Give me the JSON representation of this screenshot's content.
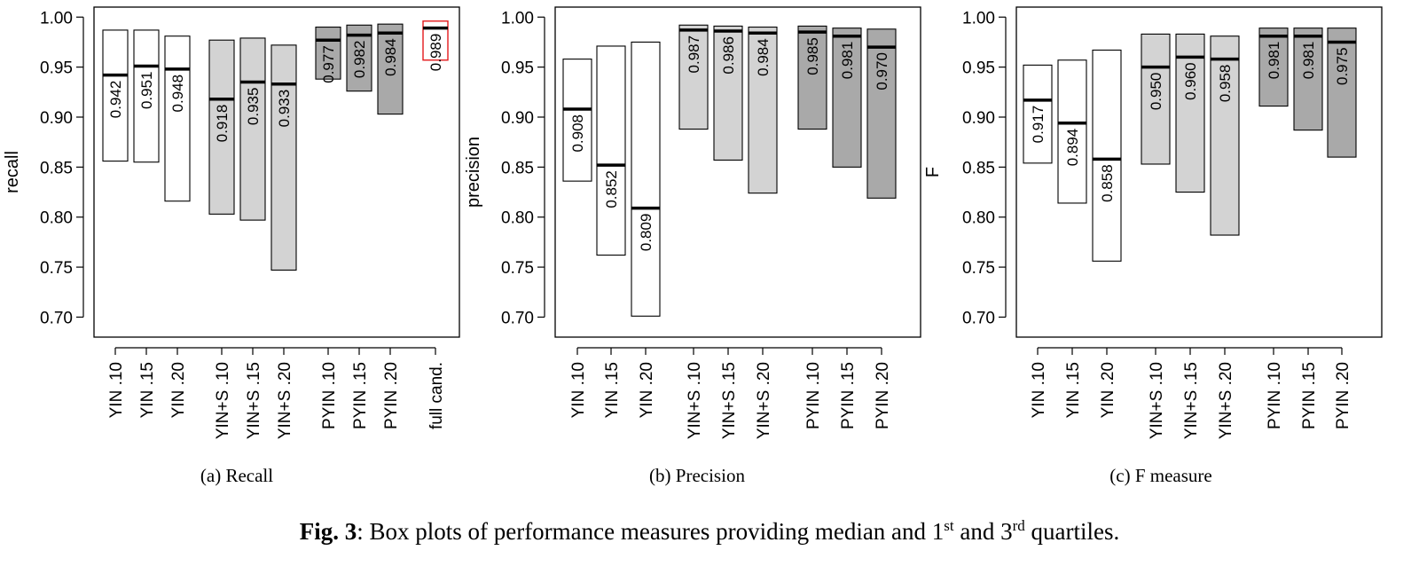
{
  "chart_data": [
    {
      "type": "box",
      "ylabel": "recall",
      "ylim": [
        0.68,
        1.01
      ],
      "yticks": [
        "0.70",
        "0.75",
        "0.80",
        "0.85",
        "0.90",
        "0.95",
        "1.00"
      ],
      "caption": "(a) Recall",
      "categories": [
        "YIN .10",
        "YIN .15",
        "YIN .20",
        "YIN+S .10",
        "YIN+S .15",
        "YIN+S .20",
        "PYIN .10",
        "PYIN .15",
        "PYIN .20",
        "full cand."
      ],
      "median_labels": [
        "0.942",
        "0.951",
        "0.948",
        "0.918",
        "0.935",
        "0.933",
        "0.977",
        "0.982",
        "0.984",
        "0.989"
      ],
      "q1": [
        0.856,
        0.855,
        0.816,
        0.803,
        0.797,
        0.747,
        0.938,
        0.926,
        0.903,
        0.957
      ],
      "median": [
        0.942,
        0.951,
        0.948,
        0.918,
        0.935,
        0.933,
        0.977,
        0.982,
        0.984,
        0.989
      ],
      "q3": [
        0.987,
        0.987,
        0.981,
        0.977,
        0.979,
        0.972,
        0.99,
        0.992,
        0.993,
        0.996
      ],
      "fill_groups": [
        "none",
        "none",
        "none",
        "light",
        "light",
        "light",
        "dark",
        "dark",
        "dark",
        "highlight"
      ]
    },
    {
      "type": "box",
      "ylabel": "precision",
      "ylim": [
        0.68,
        1.01
      ],
      "yticks": [
        "0.70",
        "0.75",
        "0.80",
        "0.85",
        "0.90",
        "0.95",
        "1.00"
      ],
      "caption": "(b) Precision",
      "categories": [
        "YIN .10",
        "YIN .15",
        "YIN .20",
        "YIN+S .10",
        "YIN+S .15",
        "YIN+S .20",
        "PYIN .10",
        "PYIN .15",
        "PYIN .20"
      ],
      "median_labels": [
        "0.908",
        "0.852",
        "0.809",
        "0.987",
        "0.986",
        "0.984",
        "0.985",
        "0.981",
        "0.970"
      ],
      "q1": [
        0.836,
        0.762,
        0.701,
        0.888,
        0.857,
        0.824,
        0.888,
        0.85,
        0.819
      ],
      "median": [
        0.908,
        0.852,
        0.809,
        0.987,
        0.986,
        0.984,
        0.985,
        0.981,
        0.97
      ],
      "q3": [
        0.958,
        0.971,
        0.975,
        0.992,
        0.991,
        0.99,
        0.991,
        0.989,
        0.988
      ],
      "fill_groups": [
        "none",
        "none",
        "none",
        "light",
        "light",
        "light",
        "dark",
        "dark",
        "dark"
      ]
    },
    {
      "type": "box",
      "ylabel": "F",
      "ylim": [
        0.68,
        1.01
      ],
      "yticks": [
        "0.70",
        "0.75",
        "0.80",
        "0.85",
        "0.90",
        "0.95",
        "1.00"
      ],
      "caption": "(c) F measure",
      "categories": [
        "YIN .10",
        "YIN .15",
        "YIN .20",
        "YIN+S .10",
        "YIN+S .15",
        "YIN+S .20",
        "PYIN .10",
        "PYIN .15",
        "PYIN .20"
      ],
      "median_labels": [
        "0.917",
        "0.894",
        "0.858",
        "0.950",
        "0.960",
        "0.958",
        "0.981",
        "0.981",
        "0.975"
      ],
      "q1": [
        0.854,
        0.814,
        0.756,
        0.853,
        0.825,
        0.782,
        0.911,
        0.887,
        0.86
      ],
      "median": [
        0.917,
        0.894,
        0.858,
        0.95,
        0.96,
        0.958,
        0.981,
        0.981,
        0.975
      ],
      "q3": [
        0.952,
        0.957,
        0.967,
        0.983,
        0.983,
        0.981,
        0.989,
        0.989,
        0.989
      ],
      "fill_groups": [
        "none",
        "none",
        "none",
        "light",
        "light",
        "light",
        "dark",
        "dark",
        "dark"
      ]
    }
  ],
  "colors": {
    "none": "#ffffff",
    "light": "#d3d3d3",
    "dark": "#a9a9a9",
    "highlight": "#ffffff",
    "highlight_border": "#e41a1c"
  },
  "figure_caption": {
    "label": "Fig. 3",
    "text_1": ": Box plots of performance measures providing median and 1",
    "sup_1": "st",
    "text_2": " and 3",
    "sup_2": "rd",
    "text_3": " quartiles."
  }
}
